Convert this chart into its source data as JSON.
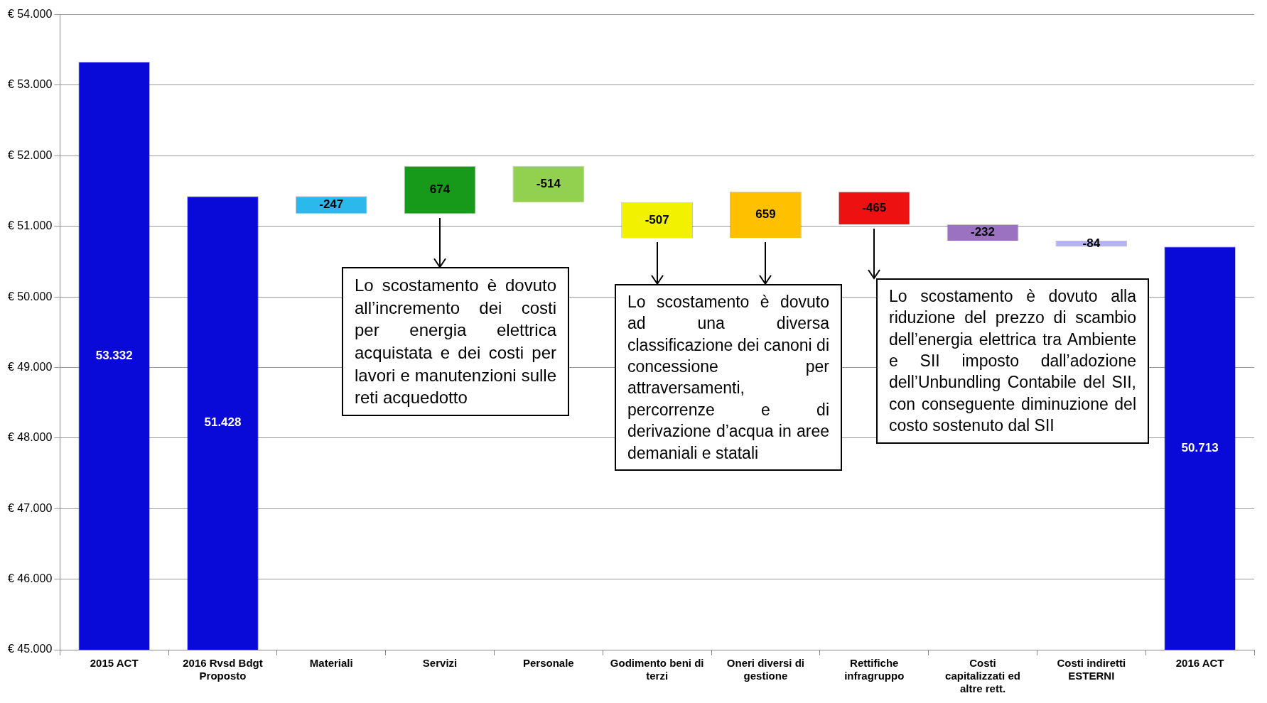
{
  "chart_data": {
    "type": "bar",
    "categories": [
      "2015 ACT",
      "2016 Rvsd Bdgt Proposto",
      "Materiali",
      "Servizi",
      "Personale",
      "Godimento beni di terzi",
      "Oneri diversi di gestione",
      "Rettifiche infragruppo",
      "Costi capitalizzati ed altre rett.",
      "Costi indiretti ESTERNI",
      "2016 ACT"
    ],
    "values": [
      53332,
      51428,
      -247,
      674,
      -514,
      -507,
      659,
      -465,
      -232,
      -84,
      50713
    ],
    "base": [
      null,
      null,
      51428,
      51181,
      51855,
      51341,
      50834,
      51493,
      51028,
      50796,
      null
    ],
    "colors": [
      "#0a0ad8",
      "#0a0ad8",
      "#2bb8ea",
      "#17991a",
      "#92d050",
      "#f2f200",
      "#ffc000",
      "#ee1111",
      "#9b72c2",
      "#b4b4f2",
      "#0a0ad8"
    ],
    "value_labels": [
      "53.332",
      "51.428",
      "-247",
      "674",
      "-514",
      "-507",
      "659",
      "-465",
      "-232",
      "-84",
      "50.713"
    ],
    "ylim": [
      45000,
      54000
    ],
    "yticks": [
      {
        "value": 45000,
        "label": "€ 45.000"
      },
      {
        "value": 46000,
        "label": "€ 46.000"
      },
      {
        "value": 47000,
        "label": "€ 47.000"
      },
      {
        "value": 48000,
        "label": "€ 48.000"
      },
      {
        "value": 49000,
        "label": "€ 49.000"
      },
      {
        "value": 50000,
        "label": "€ 50.000"
      },
      {
        "value": 51000,
        "label": "€ 51.000"
      },
      {
        "value": 52000,
        "label": "€ 52.000"
      },
      {
        "value": 53000,
        "label": "€ 53.000"
      },
      {
        "value": 54000,
        "label": "€ 54.000"
      }
    ],
    "grid": "y",
    "annotations": [
      "Lo scostamento è dovuto all’incremento dei costi per energia elettrica acquistata e dei costi per lavori e manutenzioni sulle reti acquedotto",
      "Lo scostamento è dovuto ad una diversa classificazione dei canoni di concessione per attraversamenti, percorrenze e di derivazione d’acqua in aree demaniali e statali",
      "Lo scostamento è dovuto alla riduzione del prezzo di scambio dell’energia elettrica tra Ambiente e SII imposto dall’adozione dell’Unbundling Contabile del SII, con conseguente diminuzione del costo sostenuto dal SII"
    ]
  }
}
